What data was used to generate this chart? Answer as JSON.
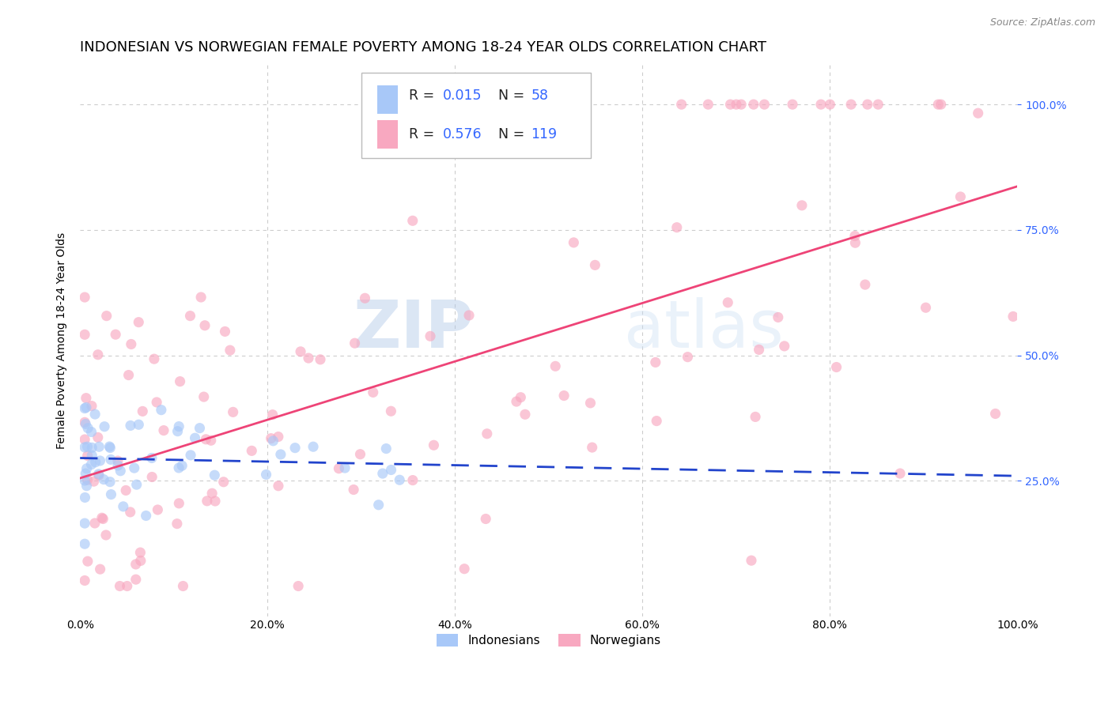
{
  "title": "INDONESIAN VS NORWEGIAN FEMALE POVERTY AMONG 18-24 YEAR OLDS CORRELATION CHART",
  "source": "Source: ZipAtlas.com",
  "ylabel": "Female Poverty Among 18-24 Year Olds",
  "indonesian_R": 0.015,
  "indonesian_N": 58,
  "norwegian_R": 0.576,
  "norwegian_N": 119,
  "indonesian_color": "#a8c8f8",
  "norwegian_color": "#f8a8c0",
  "indonesian_line_color": "#2244cc",
  "norwegian_line_color": "#ee4477",
  "grid_color": "#cccccc",
  "background_color": "#ffffff",
  "watermark_zip": "ZIP",
  "watermark_atlas": "atlas",
  "xlim": [
    0.0,
    1.0
  ],
  "ylim": [
    -0.02,
    1.08
  ],
  "xticks": [
    0.0,
    0.2,
    0.4,
    0.6,
    0.8,
    1.0
  ],
  "yticks": [
    0.25,
    0.5,
    0.75,
    1.0
  ],
  "ytick_labels_right": [
    "25.0%",
    "50.0%",
    "75.0%",
    "100.0%"
  ],
  "xtick_labels": [
    "0.0%",
    "20.0%",
    "40.0%",
    "60.0%",
    "80.0%",
    "100.0%"
  ],
  "marker_size": 90,
  "marker_alpha": 0.65,
  "title_fontsize": 13,
  "axis_label_fontsize": 10,
  "legend_R_N_color": "#3366ff",
  "legend_label_color": "#222222"
}
